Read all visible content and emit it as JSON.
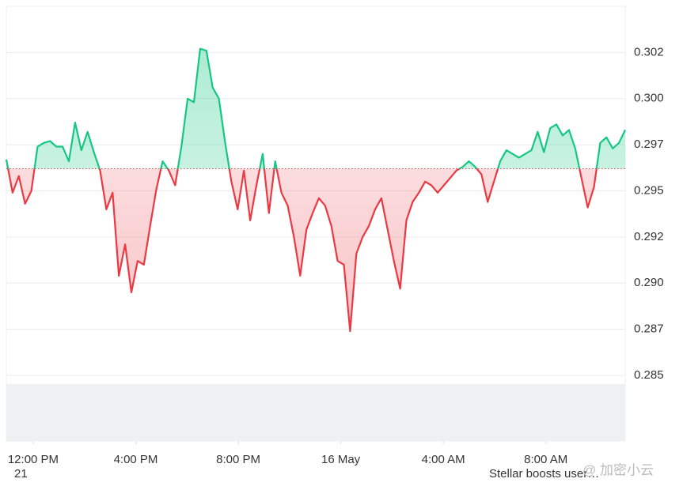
{
  "chart_data": {
    "type": "line",
    "values": [
      0.2967,
      0.2949,
      0.2958,
      0.2943,
      0.295,
      0.2974,
      0.2976,
      0.2977,
      0.2974,
      0.2974,
      0.2966,
      0.2987,
      0.2972,
      0.2982,
      0.2971,
      0.2961,
      0.294,
      0.2949,
      0.2904,
      0.2921,
      0.2895,
      0.2912,
      0.291,
      0.2931,
      0.2951,
      0.2966,
      0.2961,
      0.2953,
      0.2974,
      0.3,
      0.2998,
      0.3027,
      0.3026,
      0.3006,
      0.3,
      0.2976,
      0.2955,
      0.294,
      0.2961,
      0.2934,
      0.2953,
      0.297,
      0.2938,
      0.2966,
      0.2949,
      0.2942,
      0.2925,
      0.2904,
      0.2929,
      0.2938,
      0.2946,
      0.2942,
      0.2931,
      0.2912,
      0.291,
      0.2874,
      0.2916,
      0.2925,
      0.2931,
      0.294,
      0.2946,
      0.2929,
      0.2912,
      0.2897,
      0.2934,
      0.2944,
      0.2949,
      0.2955,
      0.2953,
      0.2949,
      0.2953,
      0.2957,
      0.2961,
      0.2963,
      0.2966,
      0.2963,
      0.2959,
      0.2944,
      0.2955,
      0.2966,
      0.2972,
      0.297,
      0.2968,
      0.297,
      0.2972,
      0.2982,
      0.2971,
      0.2984,
      0.2986,
      0.298,
      0.2983,
      0.2973,
      0.2957,
      0.2941,
      0.2952,
      0.2976,
      0.2979,
      0.2973,
      0.2976,
      0.2983
    ],
    "baseline": 0.2962,
    "up_color": "#16c784",
    "down_color": "#ea3943",
    "xlim": [
      0,
      99
    ],
    "xticks": [
      {
        "value": 4.3,
        "label": "12:00 PM"
      },
      {
        "value": 20.7,
        "label": "4:00 PM"
      },
      {
        "value": 37.1,
        "label": "8:00 PM"
      },
      {
        "value": 53.5,
        "label": "16 May"
      },
      {
        "value": 69.9,
        "label": "4:00 AM"
      },
      {
        "value": 86.3,
        "label": "8:00 AM"
      }
    ],
    "ylim": [
      0.285,
      0.305
    ],
    "yticks": [
      0.285,
      {
        "value": 0.2875,
        "label": "0.287"
      },
      {
        "value": 0.29,
        "label": "0.290"
      },
      {
        "value": 0.2925,
        "label": "0.292"
      },
      0.295,
      {
        "value": 0.2975,
        "label": "0.297"
      },
      {
        "value": 0.3,
        "label": "0.300"
      },
      {
        "value": 0.3025,
        "label": "0.302"
      }
    ],
    "grid": true
  },
  "footer": {
    "left": "21",
    "right": "Stellar boosts user…",
    "watermark": "@ 加密小云"
  }
}
